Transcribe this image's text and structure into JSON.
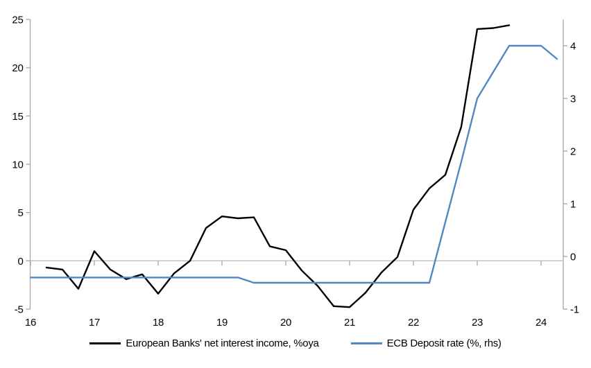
{
  "chart_data": {
    "type": "line",
    "title": "",
    "xlabel": "",
    "ylabel_left": "",
    "ylabel_right": "",
    "grid": "zero-line-only",
    "legend_position": "bottom-center",
    "x_axis": {
      "labels": [
        "16",
        "17",
        "18",
        "19",
        "20",
        "21",
        "22",
        "23",
        "24"
      ],
      "unit": "year"
    },
    "left_axis": {
      "min": -5,
      "max": 25,
      "tick_interval": 5,
      "ticks": [
        25,
        20,
        15,
        10,
        5,
        0,
        -5
      ]
    },
    "right_axis": {
      "min": -1,
      "max": 4.5,
      "tick_interval": 1,
      "ticks": [
        4,
        3,
        2,
        1,
        0,
        -1
      ]
    },
    "series": [
      {
        "name": "European Banks' net interest income, %oya",
        "axis": "left",
        "color": "#000000",
        "start_period": "2016Q2",
        "x_start": 16.25,
        "x_step": 0.25,
        "values": [
          -0.7,
          -0.9,
          -2.9,
          1.0,
          -0.9,
          -1.9,
          -1.4,
          -3.4,
          -1.3,
          0.0,
          3.4,
          4.6,
          4.4,
          4.5,
          1.5,
          1.1,
          -1.0,
          -2.6,
          -4.7,
          -4.8,
          -3.3,
          -1.2,
          0.4,
          5.3,
          7.5,
          8.9,
          13.9,
          24.0,
          24.1,
          24.4
        ]
      },
      {
        "name": "ECB Deposit rate (%, rhs)",
        "axis": "right",
        "color": "#5186C3",
        "start_period": "2016Q1",
        "x_start": 16.0,
        "x_step": 0.25,
        "values": [
          -0.4,
          -0.4,
          -0.4,
          -0.4,
          -0.4,
          -0.4,
          -0.4,
          -0.4,
          -0.4,
          -0.4,
          -0.4,
          -0.4,
          -0.4,
          -0.4,
          -0.5,
          -0.5,
          -0.5,
          -0.5,
          -0.5,
          -0.5,
          -0.5,
          -0.5,
          -0.5,
          -0.5,
          -0.5,
          -0.5,
          0.65,
          1.8,
          3.0,
          3.5,
          4.0,
          4.0,
          4.0,
          3.75
        ]
      }
    ]
  },
  "colors": {
    "axis_line": "#A6A6A6",
    "zero_line": "#BFBFBF",
    "tick_label": "#000000",
    "background": "#FFFFFF",
    "series_nii": "#000000",
    "series_ecb": "#5186C3"
  }
}
